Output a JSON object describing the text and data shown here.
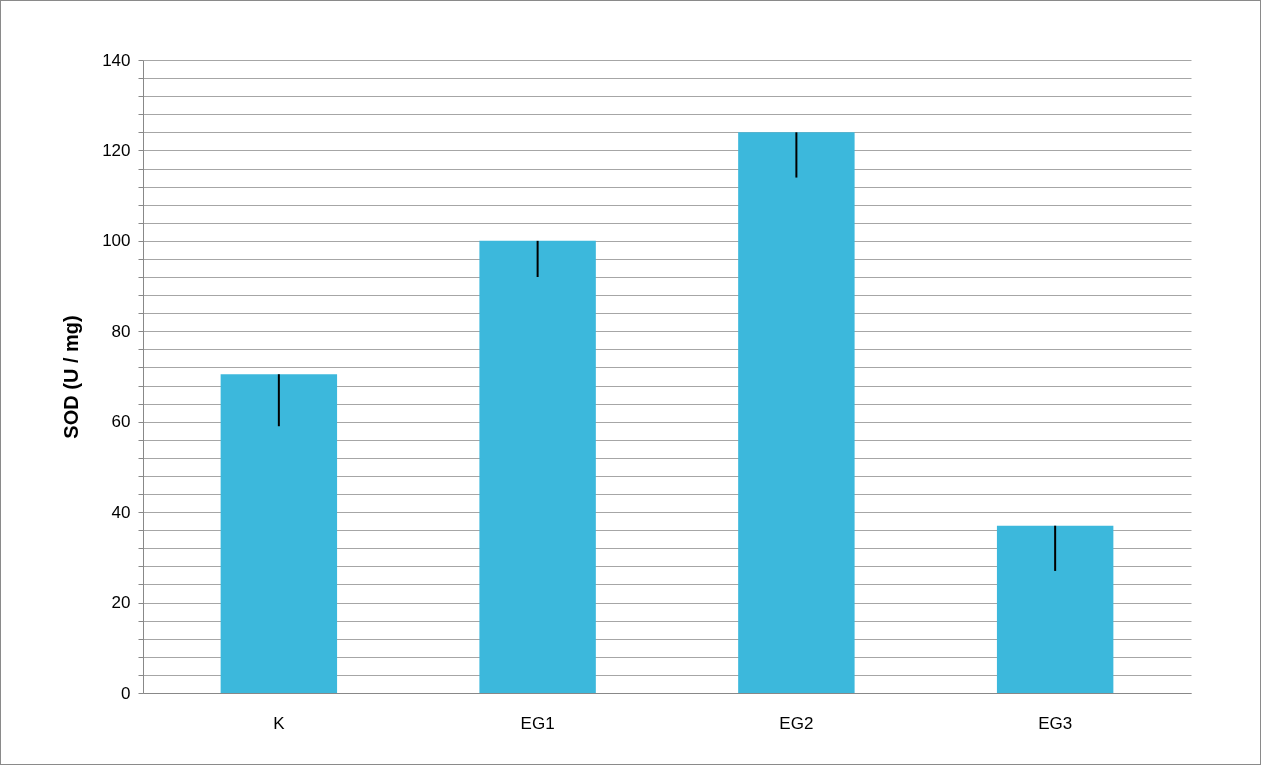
{
  "chart_data": {
    "type": "bar",
    "ylabel": "SOD (U / mg)",
    "categories": [
      "K",
      "EG1",
      "EG2",
      "EG3"
    ],
    "values": [
      70.5,
      100,
      124,
      37
    ],
    "errors": [
      [
        59,
        70.5
      ],
      [
        92,
        100
      ],
      [
        114,
        124
      ],
      [
        27,
        37
      ]
    ],
    "color": "#3cb8dc",
    "ylim": [
      0,
      140
    ],
    "yticks": [
      0,
      {
        "value": 4,
        "label": null
      },
      {
        "value": 8,
        "label": null
      },
      {
        "value": 12,
        "label": null
      },
      {
        "value": 16,
        "label": null
      },
      20,
      {
        "value": 24,
        "label": null
      },
      {
        "value": 28,
        "label": null
      },
      {
        "value": 32,
        "label": null
      },
      {
        "value": 36,
        "label": null
      },
      40,
      {
        "value": 44,
        "label": null
      },
      {
        "value": 48,
        "label": null
      },
      {
        "value": 52,
        "label": null
      },
      {
        "value": 56,
        "label": null
      },
      60,
      {
        "value": 64,
        "label": null
      },
      {
        "value": 68,
        "label": null
      },
      {
        "value": 72,
        "label": null
      },
      {
        "value": 76,
        "label": null
      },
      80,
      {
        "value": 84,
        "label": null
      },
      {
        "value": 88,
        "label": null
      },
      {
        "value": 92,
        "label": null
      },
      {
        "value": 96,
        "label": null
      },
      100,
      {
        "value": 104,
        "label": null
      },
      {
        "value": 108,
        "label": null
      },
      {
        "value": 112,
        "label": null
      },
      {
        "value": 116,
        "label": null
      },
      120,
      {
        "value": 124,
        "label": null
      },
      {
        "value": 128,
        "label": null
      },
      {
        "value": 132,
        "label": null
      },
      {
        "value": 136,
        "label": null
      },
      140
    ],
    "grid": true
  }
}
